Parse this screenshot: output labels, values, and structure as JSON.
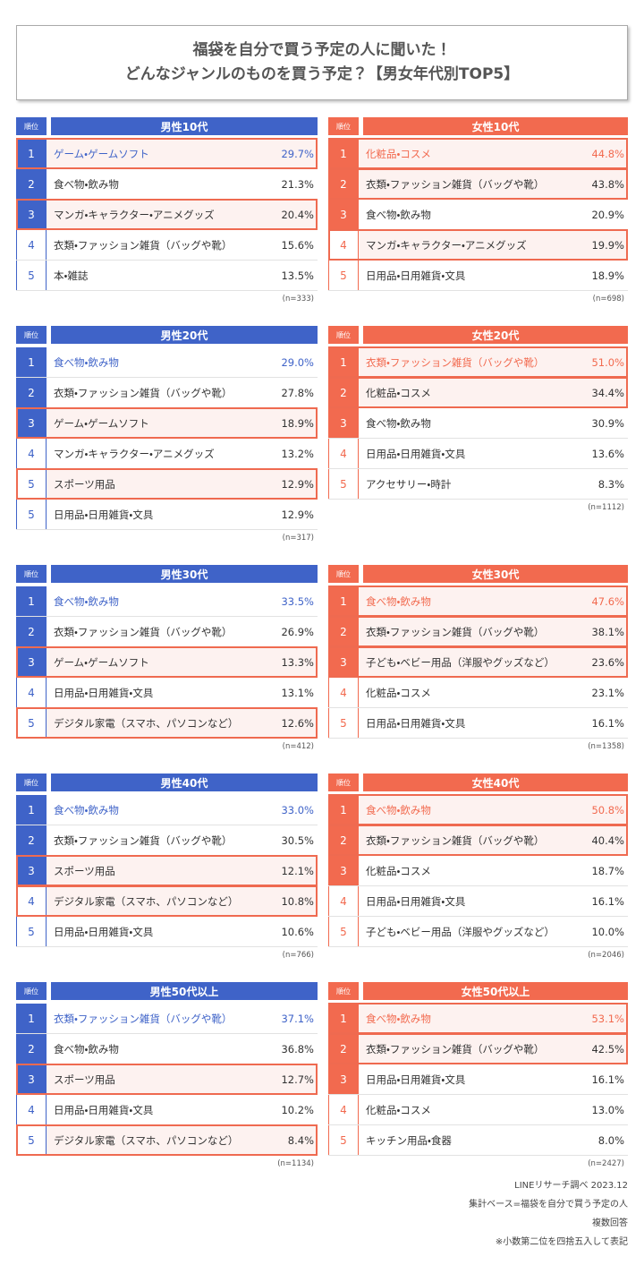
{
  "title": [
    "福袋を自分で買う予定の人に聞いた！",
    "どんなジャンルのものを買う予定？【男女年代別TOP5】"
  ],
  "panels": [
    {
      "title": "男性10代",
      "rank_header": "順位",
      "color": "#3f63c8",
      "n": "(n=333)",
      "rows": [
        {
          "rank": "1",
          "label": "ゲーム・ゲームソフト",
          "value": "29.7%",
          "highlight": true
        },
        {
          "rank": "2",
          "label": "食べ物・飲み物",
          "value": "21.3%",
          "highlight": false
        },
        {
          "rank": "3",
          "label": "マンガ・キャラクター・アニメグッズ",
          "value": "20.4%",
          "highlight": true
        },
        {
          "rank": "4",
          "label": "衣類・ファッション雑貨（バッグや靴）",
          "value": "15.6%",
          "highlight": false
        },
        {
          "rank": "5",
          "label": "本・雑誌",
          "value": "13.5%",
          "highlight": false
        }
      ]
    },
    {
      "title": "女性10代",
      "rank_header": "順位",
      "color": "#f26a4f",
      "n": "(n=698)",
      "rows": [
        {
          "rank": "1",
          "label": "化粧品・コスメ",
          "value": "44.8%",
          "highlight": true
        },
        {
          "rank": "2",
          "label": "衣類・ファッション雑貨（バッグや靴）",
          "value": "43.8%",
          "highlight": true
        },
        {
          "rank": "3",
          "label": "食べ物・飲み物",
          "value": "20.9%",
          "highlight": false
        },
        {
          "rank": "4",
          "label": "マンガ・キャラクター・アニメグッズ",
          "value": "19.9%",
          "highlight": true
        },
        {
          "rank": "5",
          "label": "日用品・日用雑貨・文具",
          "value": "18.9%",
          "highlight": false
        }
      ]
    },
    {
      "title": "男性20代",
      "rank_header": "順位",
      "color": "#3f63c8",
      "n": "(n=317)",
      "rows": [
        {
          "rank": "1",
          "label": "食べ物・飲み物",
          "value": "29.0%",
          "highlight": false
        },
        {
          "rank": "2",
          "label": "衣類・ファッション雑貨（バッグや靴）",
          "value": "27.8%",
          "highlight": false
        },
        {
          "rank": "3",
          "label": "ゲーム・ゲームソフト",
          "value": "18.9%",
          "highlight": true
        },
        {
          "rank": "4",
          "label": "マンガ・キャラクター・アニメグッズ",
          "value": "13.2%",
          "highlight": false
        },
        {
          "rank": "5",
          "label": "スポーツ用品",
          "value": "12.9%",
          "highlight": true
        },
        {
          "rank": "5",
          "label": "日用品・日用雑貨・文具",
          "value": "12.9%",
          "highlight": false
        }
      ]
    },
    {
      "title": "女性20代",
      "rank_header": "順位",
      "color": "#f26a4f",
      "n": "(n=1112)",
      "rows": [
        {
          "rank": "1",
          "label": "衣類・ファッション雑貨（バッグや靴）",
          "value": "51.0%",
          "highlight": true
        },
        {
          "rank": "2",
          "label": "化粧品・コスメ",
          "value": "34.4%",
          "highlight": true
        },
        {
          "rank": "3",
          "label": "食べ物・飲み物",
          "value": "30.9%",
          "highlight": false
        },
        {
          "rank": "4",
          "label": "日用品・日用雑貨・文具",
          "value": "13.6%",
          "highlight": false
        },
        {
          "rank": "5",
          "label": "アクセサリー・時計",
          "value": "8.3%",
          "highlight": false
        }
      ]
    },
    {
      "title": "男性30代",
      "rank_header": "順位",
      "color": "#3f63c8",
      "n": "(n=412)",
      "rows": [
        {
          "rank": "1",
          "label": "食べ物・飲み物",
          "value": "33.5%",
          "highlight": false
        },
        {
          "rank": "2",
          "label": "衣類・ファッション雑貨（バッグや靴）",
          "value": "26.9%",
          "highlight": false
        },
        {
          "rank": "3",
          "label": "ゲーム・ゲームソフト",
          "value": "13.3%",
          "highlight": true
        },
        {
          "rank": "4",
          "label": "日用品・日用雑貨・文具",
          "value": "13.1%",
          "highlight": false
        },
        {
          "rank": "5",
          "label": "デジタル家電（スマホ、パソコンなど）",
          "value": "12.6%",
          "highlight": true
        }
      ]
    },
    {
      "title": "女性30代",
      "rank_header": "順位",
      "color": "#f26a4f",
      "n": "(n=1358)",
      "rows": [
        {
          "rank": "1",
          "label": "食べ物・飲み物",
          "value": "47.6%",
          "highlight": true
        },
        {
          "rank": "2",
          "label": "衣類・ファッション雑貨（バッグや靴）",
          "value": "38.1%",
          "highlight": true
        },
        {
          "rank": "3",
          "label": "子ども・ベビー用品（洋服やグッズなど）",
          "value": "23.6%",
          "highlight": true
        },
        {
          "rank": "4",
          "label": "化粧品・コスメ",
          "value": "23.1%",
          "highlight": false
        },
        {
          "rank": "5",
          "label": "日用品・日用雑貨・文具",
          "value": "16.1%",
          "highlight": false
        }
      ]
    },
    {
      "title": "男性40代",
      "rank_header": "順位",
      "color": "#3f63c8",
      "n": "(n=766)",
      "rows": [
        {
          "rank": "1",
          "label": "食べ物・飲み物",
          "value": "33.0%",
          "highlight": false
        },
        {
          "rank": "2",
          "label": "衣類・ファッション雑貨（バッグや靴）",
          "value": "30.5%",
          "highlight": false
        },
        {
          "rank": "3",
          "label": "スポーツ用品",
          "value": "12.1%",
          "highlight": true
        },
        {
          "rank": "4",
          "label": "デジタル家電（スマホ、パソコンなど）",
          "value": "10.8%",
          "highlight": true
        },
        {
          "rank": "5",
          "label": "日用品・日用雑貨・文具",
          "value": "10.6%",
          "highlight": false
        }
      ]
    },
    {
      "title": "女性40代",
      "rank_header": "順位",
      "color": "#f26a4f",
      "n": "(n=2046)",
      "rows": [
        {
          "rank": "1",
          "label": "食べ物・飲み物",
          "value": "50.8%",
          "highlight": true
        },
        {
          "rank": "2",
          "label": "衣類・ファッション雑貨（バッグや靴）",
          "value": "40.4%",
          "highlight": true
        },
        {
          "rank": "3",
          "label": "化粧品・コスメ",
          "value": "18.7%",
          "highlight": false
        },
        {
          "rank": "4",
          "label": "日用品・日用雑貨・文具",
          "value": "16.1%",
          "highlight": false
        },
        {
          "rank": "5",
          "label": "子ども・ベビー用品（洋服やグッズなど）",
          "value": "10.0%",
          "highlight": false
        }
      ]
    },
    {
      "title": "男性50代以上",
      "rank_header": "順位",
      "color": "#3f63c8",
      "n": "(n=1134)",
      "rows": [
        {
          "rank": "1",
          "label": "衣類・ファッション雑貨（バッグや靴）",
          "value": "37.1%",
          "highlight": false
        },
        {
          "rank": "2",
          "label": "食べ物・飲み物",
          "value": "36.8%",
          "highlight": false
        },
        {
          "rank": "3",
          "label": "スポーツ用品",
          "value": "12.7%",
          "highlight": true
        },
        {
          "rank": "4",
          "label": "日用品・日用雑貨・文具",
          "value": "10.2%",
          "highlight": false
        },
        {
          "rank": "5",
          "label": "デジタル家電（スマホ、パソコンなど）",
          "value": "8.4%",
          "highlight": true
        }
      ]
    },
    {
      "title": "女性50代以上",
      "rank_header": "順位",
      "color": "#f26a4f",
      "n": "(n=2427)",
      "rows": [
        {
          "rank": "1",
          "label": "食べ物・飲み物",
          "value": "53.1%",
          "highlight": true
        },
        {
          "rank": "2",
          "label": "衣類・ファッション雑貨（バッグや靴）",
          "value": "42.5%",
          "highlight": true
        },
        {
          "rank": "3",
          "label": "日用品・日用雑貨・文具",
          "value": "16.1%",
          "highlight": false
        },
        {
          "rank": "4",
          "label": "化粧品・コスメ",
          "value": "13.0%",
          "highlight": false
        },
        {
          "rank": "5",
          "label": "キッチン用品・食器",
          "value": "8.0%",
          "highlight": false
        }
      ]
    }
  ],
  "footer": [
    "LINEリサーチ調べ 2023.12",
    "集計ベース=福袋を自分で買う予定の人",
    "複数回答",
    "※小数第二位を四捨五入して表記"
  ]
}
